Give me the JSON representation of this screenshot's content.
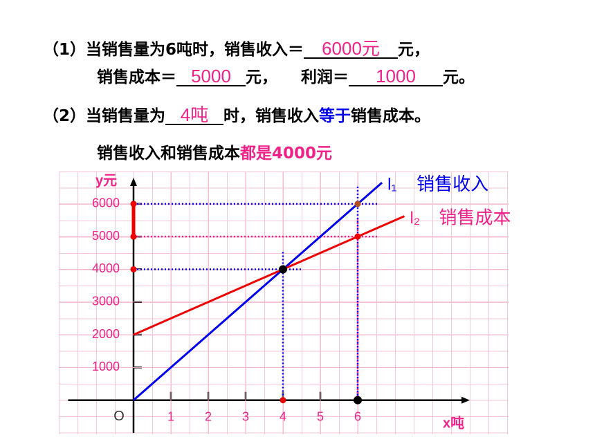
{
  "question1": {
    "prefix": "（1）当销售量为6吨时，销售收入＝",
    "answer1": "6000元",
    "suffix1": "元，",
    "line2_prefix": "销售成本＝",
    "answer2": "5000",
    "suffix2": "元，",
    "profit_prefix": "利润＝",
    "answer3": "1000",
    "suffix3": "元。"
  },
  "question2": {
    "prefix": "（2）当销售量为",
    "answer": "4吨",
    "middle": "时，销售收入",
    "highlight": "等于",
    "suffix": "销售成本。"
  },
  "note": {
    "text": "销售收入和销售成本",
    "highlight": "都是4000元"
  },
  "chart_data": {
    "type": "line",
    "y_label": "y元",
    "x_label": "x吨",
    "origin_label": "O",
    "xlim": [
      -1.75,
      9
    ],
    "ylim": [
      -1000,
      6800
    ],
    "xticks": [
      1,
      2,
      3,
      4,
      5,
      6
    ],
    "yticks": [
      1000,
      2000,
      3000,
      4000,
      5000,
      6000
    ],
    "grid": true,
    "series": [
      {
        "name": "销售收入",
        "label": "l₁",
        "color": "#0000ee",
        "label_color": "#0000ee",
        "x": [
          0,
          4,
          6,
          6.65
        ],
        "values": [
          0,
          4000,
          6000,
          6650
        ]
      },
      {
        "name": "销售成本",
        "label": "l₂",
        "color": "#ee0000",
        "label_color": "#ee2288",
        "x": [
          0,
          4,
          6,
          7.25
        ],
        "values": [
          2000,
          4000,
          5000,
          5625
        ]
      }
    ],
    "guides": [
      {
        "x": 6,
        "y": 5000,
        "color": "#ee2288"
      },
      {
        "x": 6,
        "y": 6000,
        "color": "#0000ee"
      },
      {
        "x": 4,
        "y": 4000,
        "color": "#0000ee"
      }
    ],
    "profit_segment": {
      "from": 5000,
      "to": 6000,
      "color": "#ee0000"
    },
    "points": [
      {
        "x": 0,
        "y": 6000,
        "color": "#ee0000"
      },
      {
        "x": 0,
        "y": 5000,
        "color": "#ee0000"
      },
      {
        "x": 0,
        "y": 4000,
        "color": "#ee0000"
      },
      {
        "x": 4,
        "y": 0,
        "color": "#ee0000"
      },
      {
        "x": 6,
        "y": 0,
        "color": "#000000"
      },
      {
        "x": 4,
        "y": 4000,
        "color": "#000000"
      },
      {
        "x": 6,
        "y": 6000,
        "color": "#b05020"
      },
      {
        "x": 6,
        "y": 5000,
        "color": "#ee0000"
      }
    ]
  }
}
